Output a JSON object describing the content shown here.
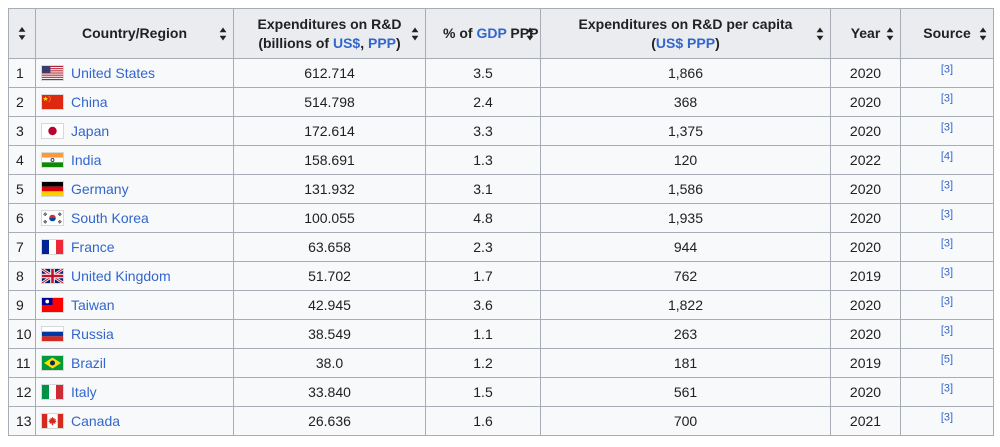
{
  "colors": {
    "link_blue": "#3366cc",
    "header_background": "#eaecf0",
    "row_background": "#f8f9fa",
    "border": "#a8adb5",
    "text": "#202122"
  },
  "table": {
    "columns": [
      {
        "key": "rank",
        "lines": [],
        "sortable": true
      },
      {
        "key": "country",
        "lines": [
          [
            {
              "t": "Country/Region"
            }
          ]
        ],
        "sortable": true
      },
      {
        "key": "expenditure",
        "lines": [
          [
            {
              "t": "Expenditures on R&D"
            }
          ],
          [
            {
              "t": "(billions of "
            },
            {
              "t": "US$",
              "link": true
            },
            {
              "t": ", "
            },
            {
              "t": "PPP",
              "link": true
            },
            {
              "t": ")"
            }
          ]
        ],
        "sortable": true
      },
      {
        "key": "gdp_pct",
        "lines": [
          [
            {
              "t": "% of "
            },
            {
              "t": "GDP",
              "link": true
            },
            {
              "t": " PPP"
            }
          ]
        ],
        "sortable": true
      },
      {
        "key": "per_capita",
        "lines": [
          [
            {
              "t": "Expenditures on R&D per capita"
            }
          ],
          [
            {
              "t": "("
            },
            {
              "t": "US$ PPP",
              "link": true
            },
            {
              "t": ")"
            }
          ]
        ],
        "sortable": true
      },
      {
        "key": "year",
        "lines": [
          [
            {
              "t": "Year"
            }
          ]
        ],
        "sortable": true
      },
      {
        "key": "source",
        "lines": [
          [
            {
              "t": "Source"
            }
          ]
        ],
        "sortable": true
      }
    ],
    "rows": [
      {
        "rank": "1",
        "country": "United States",
        "flag": "us",
        "expenditure": "612.714",
        "gdp_pct": "3.5",
        "per_capita": "1,866",
        "year": "2020",
        "source": "[3]"
      },
      {
        "rank": "2",
        "country": "China",
        "flag": "cn",
        "expenditure": "514.798",
        "gdp_pct": "2.4",
        "per_capita": "368",
        "year": "2020",
        "source": "[3]"
      },
      {
        "rank": "3",
        "country": "Japan",
        "flag": "jp",
        "expenditure": "172.614",
        "gdp_pct": "3.3",
        "per_capita": "1,375",
        "year": "2020",
        "source": "[3]"
      },
      {
        "rank": "4",
        "country": "India",
        "flag": "in",
        "expenditure": "158.691",
        "gdp_pct": "1.3",
        "per_capita": "120",
        "year": "2022",
        "source": "[4]"
      },
      {
        "rank": "5",
        "country": "Germany",
        "flag": "de",
        "expenditure": "131.932",
        "gdp_pct": "3.1",
        "per_capita": "1,586",
        "year": "2020",
        "source": "[3]"
      },
      {
        "rank": "6",
        "country": "South Korea",
        "flag": "kr",
        "expenditure": "100.055",
        "gdp_pct": "4.8",
        "per_capita": "1,935",
        "year": "2020",
        "source": "[3]"
      },
      {
        "rank": "7",
        "country": "France",
        "flag": "fr",
        "expenditure": "63.658",
        "gdp_pct": "2.3",
        "per_capita": "944",
        "year": "2020",
        "source": "[3]"
      },
      {
        "rank": "8",
        "country": "United Kingdom",
        "flag": "gb",
        "expenditure": "51.702",
        "gdp_pct": "1.7",
        "per_capita": "762",
        "year": "2019",
        "source": "[3]"
      },
      {
        "rank": "9",
        "country": "Taiwan",
        "flag": "tw",
        "expenditure": "42.945",
        "gdp_pct": "3.6",
        "per_capita": "1,822",
        "year": "2020",
        "source": "[3]"
      },
      {
        "rank": "10",
        "country": "Russia",
        "flag": "ru",
        "expenditure": "38.549",
        "gdp_pct": "1.1",
        "per_capita": "263",
        "year": "2020",
        "source": "[3]"
      },
      {
        "rank": "11",
        "country": "Brazil",
        "flag": "br",
        "expenditure": "38.0",
        "gdp_pct": "1.2",
        "per_capita": "181",
        "year": "2019",
        "source": "[5]"
      },
      {
        "rank": "12",
        "country": "Italy",
        "flag": "it",
        "expenditure": "33.840",
        "gdp_pct": "1.5",
        "per_capita": "561",
        "year": "2020",
        "source": "[3]"
      },
      {
        "rank": "13",
        "country": "Canada",
        "flag": "ca",
        "expenditure": "26.636",
        "gdp_pct": "1.6",
        "per_capita": "700",
        "year": "2021",
        "source": "[3]"
      }
    ]
  }
}
